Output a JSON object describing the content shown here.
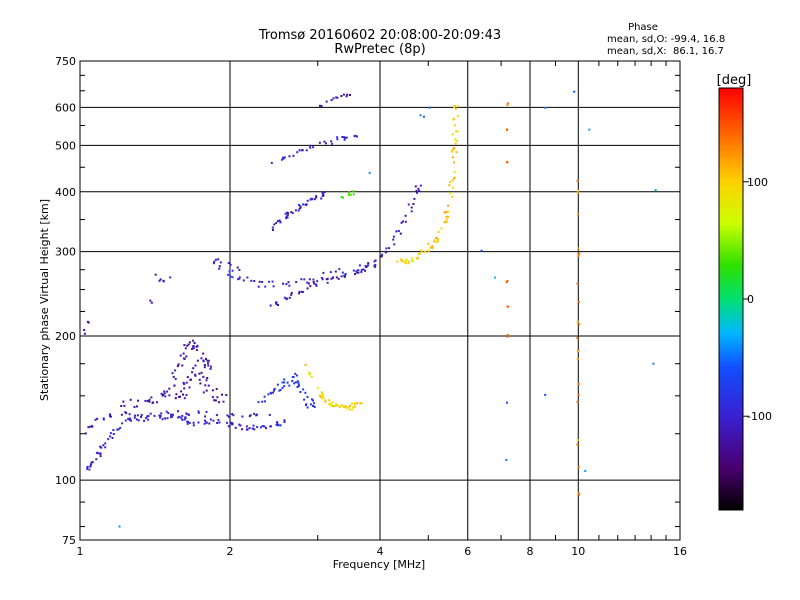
{
  "chart_data": {
    "type": "scatter",
    "title": "Tromsø 20160602 20:08:00-20:09:43",
    "subtitle": "RwPretec (8p)",
    "xlabel": "Frequency [MHz]",
    "ylabel": "Stationary phase Virtual Height [km]",
    "x_scale": "log",
    "y_scale": "log",
    "xlim": [
      1,
      16
    ],
    "ylim": [
      75,
      750
    ],
    "x_ticks": [
      1,
      2,
      4,
      6,
      8,
      10,
      16
    ],
    "x_tick_labels": [
      "1",
      "2",
      "4",
      "6",
      "8",
      "10",
      "16"
    ],
    "y_ticks": [
      75,
      100,
      200,
      300,
      400,
      500,
      600,
      750
    ],
    "y_tick_labels": [
      "75",
      "100",
      "200",
      "300",
      "400",
      "500",
      "600",
      "750"
    ],
    "grid": true,
    "colorbar": {
      "label": "[deg]",
      "range": [
        -180,
        180
      ],
      "ticks": [
        100,
        0,
        -100
      ],
      "tick_labels": [
        "100",
        "0",
        "-100"
      ]
    },
    "info": {
      "heading": "Phase",
      "line1": "mean, sd,O: -99.4, 16.8",
      "line2": "mean, sd,X:  86.1, 16.7"
    },
    "traces": [
      {
        "name": "low-O",
        "points": [
          [
            1.02,
            104
          ],
          [
            1.05,
            107
          ],
          [
            1.08,
            110
          ],
          [
            1.1,
            116
          ],
          [
            1.13,
            120
          ],
          [
            1.17,
            127
          ],
          [
            1.22,
            132
          ],
          [
            1.28,
            135
          ],
          [
            1.35,
            134
          ],
          [
            1.42,
            136
          ],
          [
            1.5,
            135
          ],
          [
            1.55,
            136
          ],
          [
            1.6,
            135
          ],
          [
            1.65,
            132
          ],
          [
            1.72,
            131
          ],
          [
            1.8,
            133
          ],
          [
            1.9,
            132
          ],
          [
            2.0,
            131
          ],
          [
            2.1,
            129
          ],
          [
            2.2,
            129
          ],
          [
            2.3,
            129
          ],
          [
            2.4,
            130
          ],
          [
            2.5,
            131
          ],
          [
            2.6,
            132
          ]
        ],
        "phase": -100,
        "spread": 0.012,
        "density": 5
      },
      {
        "name": "low-O-b",
        "points": [
          [
            1.02,
            125
          ],
          [
            1.06,
            130
          ],
          [
            1.12,
            135
          ],
          [
            1.2,
            137
          ],
          [
            1.28,
            138
          ],
          [
            1.4,
            137
          ],
          [
            1.55,
            138
          ],
          [
            1.7,
            138
          ],
          [
            1.85,
            137
          ],
          [
            2.0,
            136
          ],
          [
            2.2,
            136
          ],
          [
            2.4,
            137
          ]
        ],
        "phase": -105,
        "spread": 0.012,
        "density": 4
      },
      {
        "name": "low-O-c",
        "points": [
          [
            1.2,
            143
          ],
          [
            1.3,
            145
          ],
          [
            1.4,
            145
          ],
          [
            1.48,
            150
          ],
          [
            1.52,
            160
          ],
          [
            1.58,
            170
          ],
          [
            1.62,
            185
          ],
          [
            1.66,
            195
          ],
          [
            1.7,
            190
          ],
          [
            1.75,
            180
          ],
          [
            1.8,
            175
          ],
          [
            1.86,
            168
          ]
        ],
        "phase": -115,
        "spread": 0.02,
        "density": 6
      },
      {
        "name": "low-O-d",
        "points": [
          [
            1.55,
            145
          ],
          [
            1.6,
            150
          ],
          [
            1.65,
            160
          ],
          [
            1.7,
            170
          ],
          [
            1.75,
            165
          ],
          [
            1.8,
            155
          ],
          [
            1.88,
            150
          ],
          [
            1.95,
            148
          ]
        ],
        "phase": -122,
        "spread": 0.025,
        "density": 6
      },
      {
        "name": "low-mid",
        "points": [
          [
            2.3,
            145
          ],
          [
            2.4,
            150
          ],
          [
            2.5,
            155
          ],
          [
            2.6,
            160
          ],
          [
            2.7,
            165
          ],
          [
            2.75,
            160
          ],
          [
            2.8,
            150
          ],
          [
            2.9,
            145
          ],
          [
            3.0,
            142
          ]
        ],
        "phase": -80,
        "spread": 0.02,
        "density": 6
      },
      {
        "name": "low-X",
        "points": [
          [
            2.85,
            175
          ],
          [
            2.95,
            160
          ],
          [
            3.05,
            150
          ],
          [
            3.15,
            145
          ],
          [
            3.25,
            143
          ],
          [
            3.35,
            142
          ],
          [
            3.45,
            141
          ],
          [
            3.55,
            143
          ],
          [
            3.65,
            144
          ]
        ],
        "phase": 95,
        "spread": 0.012,
        "density": 6
      },
      {
        "name": "E-O",
        "points": [
          [
            2.4,
            232
          ],
          [
            2.55,
            236
          ],
          [
            2.7,
            245
          ],
          [
            2.9,
            255
          ],
          [
            3.1,
            260
          ],
          [
            3.3,
            265
          ],
          [
            3.5,
            268
          ],
          [
            3.7,
            275
          ],
          [
            3.9,
            285
          ],
          [
            4.1,
            300
          ],
          [
            4.3,
            320
          ],
          [
            4.5,
            350
          ],
          [
            4.7,
            390
          ],
          [
            4.8,
            420
          ]
        ],
        "phase": -110,
        "spread": 0.012,
        "density": 6
      },
      {
        "name": "E-O-b",
        "points": [
          [
            1.85,
            290
          ],
          [
            1.95,
            275
          ],
          [
            2.05,
            265
          ],
          [
            2.2,
            258
          ],
          [
            2.35,
            255
          ],
          [
            2.55,
            258
          ],
          [
            2.8,
            260
          ],
          [
            3.0,
            265
          ],
          [
            3.3,
            272
          ],
          [
            3.6,
            278
          ],
          [
            3.9,
            285
          ]
        ],
        "phase": -100,
        "spread": 0.018,
        "density": 5
      },
      {
        "name": "E-X",
        "points": [
          [
            4.3,
            290
          ],
          [
            4.5,
            285
          ],
          [
            4.7,
            290
          ],
          [
            4.9,
            300
          ],
          [
            5.1,
            310
          ],
          [
            5.3,
            330
          ],
          [
            5.45,
            360
          ],
          [
            5.55,
            400
          ],
          [
            5.6,
            450
          ],
          [
            5.65,
            500
          ],
          [
            5.68,
            560
          ],
          [
            5.7,
            610
          ]
        ],
        "phase": 100,
        "spread": 0.012,
        "density": 7
      },
      {
        "name": "F2-O",
        "points": [
          [
            2.4,
            335
          ],
          [
            2.5,
            345
          ],
          [
            2.6,
            355
          ],
          [
            2.7,
            365
          ],
          [
            2.8,
            375
          ],
          [
            2.9,
            385
          ],
          [
            3.0,
            390
          ],
          [
            3.1,
            395
          ]
        ],
        "phase": -100,
        "spread": 0.012,
        "density": 6
      },
      {
        "name": "F2-O-b",
        "points": [
          [
            2.4,
            455
          ],
          [
            2.6,
            470
          ],
          [
            2.8,
            485
          ],
          [
            3.0,
            500
          ],
          [
            3.2,
            510
          ],
          [
            3.4,
            520
          ],
          [
            3.6,
            525
          ]
        ],
        "phase": -95,
        "spread": 0.012,
        "density": 5
      },
      {
        "name": "F2-O-c",
        "points": [
          [
            3.0,
            600
          ],
          [
            3.2,
            620
          ],
          [
            3.4,
            635
          ],
          [
            3.55,
            645
          ]
        ],
        "phase": -120,
        "spread": 0.01,
        "density": 4
      },
      {
        "name": "F2-X-small",
        "points": [
          [
            3.3,
            385
          ],
          [
            3.45,
            395
          ],
          [
            3.55,
            400
          ]
        ],
        "phase": 30,
        "spread": 0.01,
        "density": 4
      },
      {
        "name": "sparse-1",
        "points": [
          [
            1.42,
            265
          ],
          [
            1.46,
            258
          ],
          [
            1.5,
            262
          ],
          [
            1.9,
            290
          ],
          [
            2.0,
            285
          ],
          [
            2.1,
            275
          ],
          [
            1.02,
            206
          ],
          [
            1.05,
            210
          ],
          [
            1.37,
            236
          ]
        ],
        "phase": -105,
        "spread": 0.02,
        "density": 2
      },
      {
        "name": "vert-10",
        "points": [
          [
            10.0,
            90
          ],
          [
            10.0,
            120
          ],
          [
            10.0,
            160
          ],
          [
            10.0,
            200
          ],
          [
            10.0,
            260
          ],
          [
            10.0,
            330
          ],
          [
            10.0,
            420
          ]
        ],
        "phase": 120,
        "spread": 0.005,
        "density": 4
      },
      {
        "name": "vert-7",
        "points": [
          [
            7.2,
            200
          ],
          [
            7.2,
            230
          ],
          [
            7.2,
            260
          ],
          [
            7.2,
            460
          ],
          [
            7.2,
            540
          ],
          [
            7.2,
            610
          ]
        ],
        "phase": 140,
        "spread": 0.005,
        "density": 2
      },
      {
        "name": "outliers",
        "points": [
          [
            4.8,
            580
          ],
          [
            4.9,
            575
          ],
          [
            5.05,
            600
          ],
          [
            6.4,
            300
          ],
          [
            6.8,
            265
          ],
          [
            8.6,
            150
          ],
          [
            8.6,
            600
          ],
          [
            9.8,
            650
          ],
          [
            10.3,
            105
          ],
          [
            10.5,
            540
          ],
          [
            14.2,
            175
          ],
          [
            14.3,
            405
          ],
          [
            7.2,
            110
          ],
          [
            7.2,
            145
          ],
          [
            1.2,
            80
          ],
          [
            3.8,
            440
          ]
        ],
        "phase": -40,
        "spread": 0.005,
        "density": 1
      }
    ]
  }
}
